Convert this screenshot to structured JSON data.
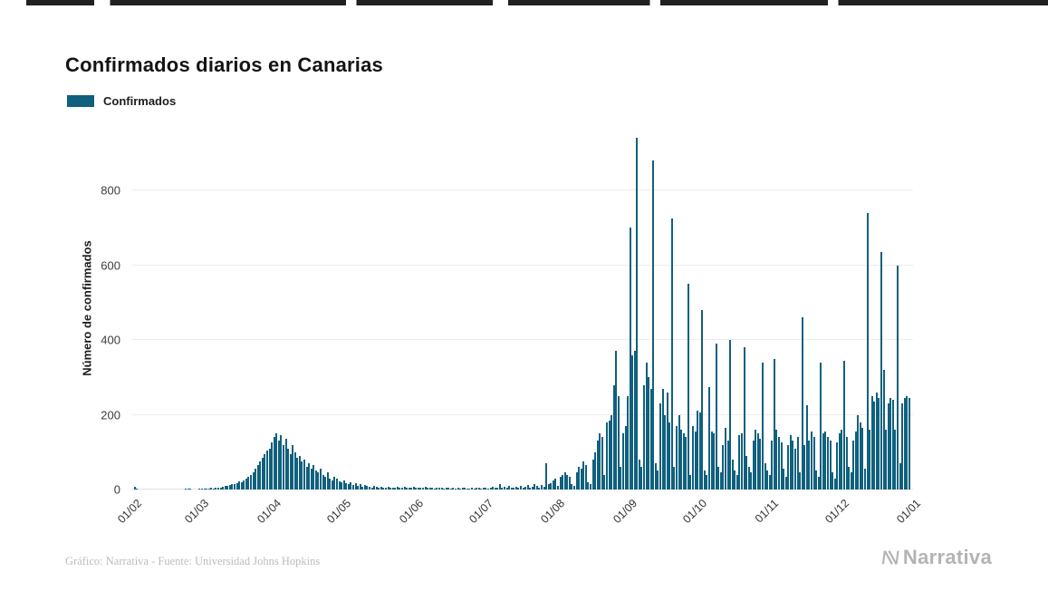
{
  "page": {
    "title": "Confirmados diarios en Canarias"
  },
  "legend": {
    "label": "Confirmados"
  },
  "footer": {
    "credit": "Gráfico: Narrativa - Fuente: Universidad Johns Hopkins",
    "brand": "Narrativa"
  },
  "chart_data": {
    "type": "bar",
    "title": "Confirmados diarios en Canarias",
    "xlabel": "",
    "ylabel": "Número de confirmados",
    "series_name": "Confirmados",
    "bar_color": "#10607e",
    "grid": true,
    "legend_position": "top-left",
    "ylim": [
      0,
      975
    ],
    "yticks": [
      0,
      200,
      400,
      600,
      800
    ],
    "xticks": [
      {
        "label": "01/02",
        "day": 0
      },
      {
        "label": "01/03",
        "day": 29
      },
      {
        "label": "01/04",
        "day": 60
      },
      {
        "label": "01/05",
        "day": 90
      },
      {
        "label": "01/06",
        "day": 121
      },
      {
        "label": "01/07",
        "day": 151
      },
      {
        "label": "01/08",
        "day": 182
      },
      {
        "label": "01/09",
        "day": 213
      },
      {
        "label": "01/10",
        "day": 243
      },
      {
        "label": "01/11",
        "day": 274
      },
      {
        "label": "01/12",
        "day": 304
      },
      {
        "label": "01/01",
        "day": 335
      }
    ],
    "total_days": 336,
    "values": [
      0,
      8,
      2,
      0,
      0,
      0,
      0,
      0,
      0,
      0,
      0,
      0,
      0,
      0,
      0,
      0,
      0,
      0,
      0,
      0,
      0,
      0,
      0,
      1,
      2,
      1,
      0,
      0,
      0,
      1,
      2,
      1,
      3,
      2,
      4,
      3,
      5,
      6,
      4,
      8,
      10,
      9,
      12,
      15,
      14,
      18,
      22,
      20,
      25,
      28,
      35,
      40,
      45,
      55,
      65,
      75,
      85,
      95,
      105,
      110,
      125,
      140,
      150,
      130,
      145,
      120,
      135,
      110,
      95,
      120,
      100,
      85,
      90,
      75,
      80,
      60,
      70,
      55,
      65,
      50,
      45,
      55,
      40,
      35,
      45,
      30,
      25,
      35,
      28,
      22,
      20,
      25,
      18,
      15,
      20,
      12,
      16,
      10,
      14,
      8,
      12,
      10,
      8,
      6,
      10,
      8,
      5,
      8,
      6,
      4,
      8,
      5,
      6,
      4,
      8,
      6,
      5,
      8,
      4,
      6,
      5,
      8,
      5,
      6,
      4,
      6,
      8,
      5,
      4,
      6,
      3,
      5,
      4,
      6,
      3,
      4,
      5,
      3,
      4,
      2,
      5,
      3,
      4,
      6,
      3,
      2,
      4,
      3,
      5,
      4,
      3,
      4,
      6,
      3,
      5,
      8,
      4,
      6,
      14,
      5,
      8,
      6,
      10,
      4,
      6,
      8,
      5,
      10,
      6,
      8,
      12,
      5,
      8,
      15,
      10,
      6,
      12,
      8,
      70,
      14,
      18,
      25,
      30,
      10,
      35,
      40,
      45,
      40,
      35,
      15,
      10,
      45,
      60,
      55,
      75,
      65,
      20,
      15,
      80,
      100,
      130,
      150,
      140,
      40,
      180,
      185,
      200,
      280,
      370,
      250,
      60,
      150,
      170,
      250,
      700,
      360,
      370,
      940,
      80,
      60,
      280,
      340,
      300,
      270,
      880,
      70,
      50,
      230,
      270,
      200,
      260,
      180,
      725,
      60,
      170,
      200,
      160,
      150,
      140,
      550,
      40,
      170,
      155,
      210,
      205,
      480,
      50,
      40,
      275,
      155,
      150,
      390,
      60,
      45,
      120,
      165,
      130,
      400,
      80,
      50,
      40,
      145,
      150,
      380,
      90,
      60,
      45,
      130,
      160,
      150,
      135,
      340,
      70,
      50,
      40,
      130,
      350,
      160,
      140,
      125,
      55,
      35,
      120,
      145,
      130,
      110,
      140,
      45,
      460,
      120,
      225,
      130,
      155,
      140,
      50,
      35,
      340,
      150,
      155,
      140,
      130,
      45,
      30,
      125,
      150,
      160,
      345,
      140,
      60,
      45,
      130,
      155,
      200,
      180,
      165,
      55,
      740,
      160,
      250,
      235,
      260,
      245,
      635,
      320,
      160,
      230,
      245,
      240,
      160,
      600,
      70,
      230,
      245,
      250,
      245,
      0
    ]
  }
}
